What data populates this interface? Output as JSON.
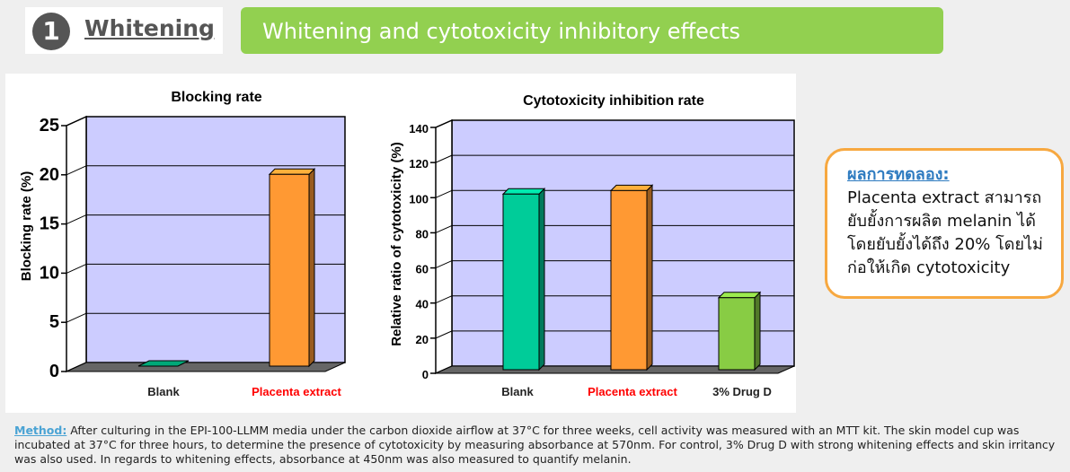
{
  "header": {
    "section_number": "1",
    "section_title": "Whitening",
    "banner_title": "Whitening and cytotoxicity inhibitory effects"
  },
  "chart_data": [
    {
      "type": "bar",
      "title": "Blocking rate",
      "ylabel": "Blocking rate (%)",
      "xlabel": "",
      "categories": [
        "Blank",
        "Placenta extract"
      ],
      "category_colors": [
        "#222222",
        "#ff0000"
      ],
      "values": [
        0,
        19.5
      ],
      "bar_colors": [
        "#00a878",
        "#ff9933"
      ],
      "yticks": [
        "0",
        "5",
        "10",
        "15",
        "20",
        "25"
      ],
      "ylim": [
        0,
        25
      ],
      "grid": true,
      "plot_background": "#ccccff",
      "floor_color": "#666666"
    },
    {
      "type": "bar",
      "title": "Cytotoxicity inhibition rate",
      "ylabel": "Relative ratio of cytotoxicity (%)",
      "xlabel": "",
      "categories": [
        "Blank",
        "Placenta extract",
        "3% Drug D"
      ],
      "category_colors": [
        "#222222",
        "#ff0000",
        "#222222"
      ],
      "values": [
        100,
        102,
        41
      ],
      "bar_colors": [
        "#00cc99",
        "#ff9933",
        "#88cc44"
      ],
      "yticks": [
        "0",
        "20",
        "40",
        "60",
        "80",
        "100",
        "120",
        "140"
      ],
      "ylim": [
        0,
        140
      ],
      "grid": true,
      "plot_background": "#ccccff",
      "floor_color": "#666666"
    }
  ],
  "note": {
    "title": "ผลการทดลอง:",
    "lines": [
      "Placenta extract สามารถ",
      "ยับยั้งการผลิต melanin ได้",
      "โดยยับยั้งได้ถึง 20% โดยไม่",
      "ก่อให้เกิด cytotoxicity"
    ]
  },
  "method": {
    "label": "Method:",
    "text": " After culturing in the EPI-100-LLMM media under the carbon dioxide airflow at 37°C for three weeks, cell activity was measured with an MTT kit.  The skin model cup was incubated at 37°C for three hours, to determine the presence of cytotoxicity by measuring absorbance at 570nm.   For control, 3% Drug D with strong whitening effects and skin irritancy was also used.  In regards to whitening effects, absorbance at 450nm was also measured to quantify melanin."
  }
}
